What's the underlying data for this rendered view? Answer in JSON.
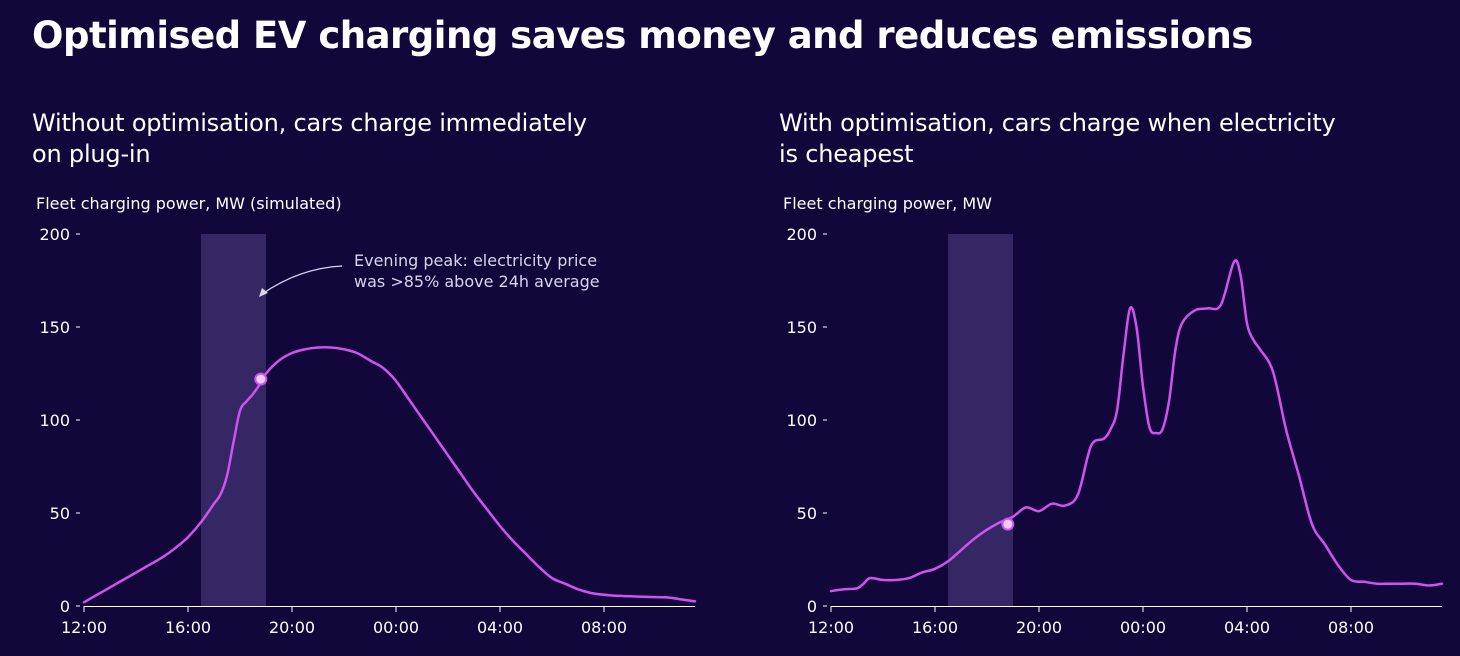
{
  "title": "Optimised EV charging saves money and reduces emissions",
  "colors": {
    "background": "#12073a",
    "line": "#d152f0",
    "shade": "#3b2d6b",
    "marker": "#f3c9ff",
    "axis": "#ffffff"
  },
  "chart_data": [
    {
      "type": "line",
      "subtitle": "Without optimisation, cars charge immediately on plug-in",
      "ylabel": "Fleet charging power, MW (simulated)",
      "xlabel": "",
      "ylim": [
        0,
        200
      ],
      "yticks": [
        0,
        50,
        100,
        150,
        200
      ],
      "xlim_hours": [
        0,
        23.5
      ],
      "xticks": [
        {
          "h": 0,
          "label": "12:00"
        },
        {
          "h": 4,
          "label": "16:00"
        },
        {
          "h": 8,
          "label": "20:00"
        },
        {
          "h": 12,
          "label": "00:00"
        },
        {
          "h": 16,
          "label": "04:00"
        },
        {
          "h": 20,
          "label": "08:00"
        }
      ],
      "shaded_region_hours": [
        4.5,
        7.0
      ],
      "annotation": {
        "lines": [
          "Evening peak: electricity price",
          "was >85% above 24h average"
        ],
        "point_hour": 6.8,
        "point_value": 122
      },
      "series": [
        {
          "name": "Fleet charging power",
          "x": [
            0,
            0.5,
            1,
            1.5,
            2,
            2.5,
            3,
            3.5,
            4,
            4.5,
            5,
            5.25,
            5.5,
            5.75,
            6,
            6.25,
            6.5,
            6.75,
            7,
            7.5,
            8,
            8.5,
            9,
            9.5,
            10,
            10.5,
            11,
            11.5,
            12,
            12.5,
            13,
            13.5,
            14,
            14.5,
            15,
            15.5,
            16,
            16.5,
            17,
            17.5,
            18,
            18.5,
            19,
            19.5,
            20,
            20.5,
            21,
            21.5,
            22,
            22.5,
            23,
            23.5
          ],
          "values": [
            2,
            6,
            10,
            14,
            18,
            22,
            26,
            31,
            37,
            45,
            55,
            60,
            70,
            88,
            105,
            110,
            114,
            119,
            125,
            132,
            136,
            138,
            139,
            139,
            138,
            136,
            132,
            128,
            121,
            111,
            101,
            91,
            81,
            71,
            61,
            52,
            43,
            35,
            28,
            21,
            15,
            12,
            9,
            7,
            6,
            5.5,
            5.2,
            5,
            4.8,
            4.5,
            3.5,
            2.5
          ]
        }
      ]
    },
    {
      "type": "line",
      "subtitle": "With optimisation, cars charge when electricity is cheapest",
      "ylabel": "Fleet charging power, MW",
      "xlabel": "",
      "ylim": [
        0,
        200
      ],
      "yticks": [
        0,
        50,
        100,
        150,
        200
      ],
      "xlim_hours": [
        0,
        23.5
      ],
      "xticks": [
        {
          "h": 0,
          "label": "12:00"
        },
        {
          "h": 4,
          "label": "16:00"
        },
        {
          "h": 8,
          "label": "20:00"
        },
        {
          "h": 12,
          "label": "00:00"
        },
        {
          "h": 16,
          "label": "04:00"
        },
        {
          "h": 20,
          "label": "08:00"
        }
      ],
      "shaded_region_hours": [
        4.5,
        7.0
      ],
      "annotation": {
        "lines": [],
        "point_hour": 6.8,
        "point_value": 44
      },
      "series": [
        {
          "name": "Fleet charging power",
          "x": [
            0,
            0.5,
            1,
            1.25,
            1.5,
            2,
            2.5,
            3,
            3.5,
            4,
            4.5,
            5,
            5.5,
            6,
            6.5,
            7,
            7.5,
            8,
            8.5,
            9,
            9.5,
            10,
            10.5,
            10.75,
            11,
            11.25,
            11.5,
            11.75,
            12,
            12.25,
            12.5,
            12.75,
            13,
            13.25,
            13.5,
            14,
            14.5,
            15,
            15.5,
            15.75,
            16,
            16.25,
            16.5,
            17,
            17.5,
            18,
            18.5,
            19,
            19.5,
            20,
            20.5,
            21,
            21.5,
            22,
            22.5,
            23,
            23.5
          ],
          "values": [
            8,
            9,
            9.5,
            12,
            15,
            14,
            14,
            15,
            18,
            20,
            24,
            30,
            36,
            41,
            45,
            48,
            53,
            51,
            55,
            54,
            60,
            86,
            90,
            95,
            105,
            135,
            160,
            150,
            118,
            96,
            93,
            95,
            110,
            138,
            152,
            159,
            160,
            162,
            185,
            178,
            152,
            143,
            138,
            126,
            95,
            70,
            44,
            33,
            22,
            14,
            13,
            12,
            12,
            12,
            12,
            11,
            12
          ]
        }
      ]
    }
  ]
}
